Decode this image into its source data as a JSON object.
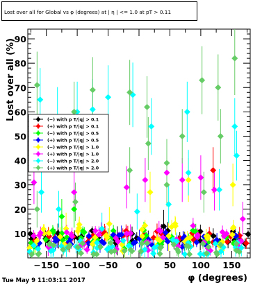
{
  "title": "Lost over all for Global vs φ (degrees) at | η | <= 1.0 at pT > 0.11",
  "footer": "Tue May  9 11:03:11 2017",
  "chart_data": {
    "type": "scatter",
    "xlabel": "φ (degrees)",
    "ylabel": "Lost over all (%)",
    "xlim": [
      -180,
      180
    ],
    "ylim": [
      0,
      94
    ],
    "xticks": [
      -150,
      -100,
      -50,
      0,
      50,
      100,
      150
    ],
    "yticks": [
      10,
      20,
      30,
      40,
      50,
      60,
      70,
      80,
      90
    ],
    "xtick_labels": [
      "−150",
      "−100",
      "−50",
      "0",
      "50",
      "100",
      "150"
    ],
    "ytick_labels": [
      "10",
      "20",
      "30",
      "40",
      "50",
      "60",
      "70",
      "80",
      "90"
    ],
    "grid": false,
    "legend_position": "middle-left",
    "series": [
      {
        "name": "(−) with p T/|q| > 0.1",
        "color": "#000000",
        "points": [
          [
            -170,
            8
          ],
          [
            -150,
            9
          ],
          [
            -125,
            8
          ],
          [
            -100,
            9
          ],
          [
            -70,
            9
          ],
          [
            -40,
            8
          ],
          [
            -10,
            9
          ],
          [
            15,
            8
          ],
          [
            40,
            9
          ],
          [
            70,
            8
          ],
          [
            100,
            9
          ],
          [
            125,
            8
          ],
          [
            150,
            9
          ],
          [
            172,
            8
          ]
        ],
        "upper": [
          [
            -35,
            7
          ],
          [
            40,
            13
          ]
        ]
      },
      {
        "name": "(+) with p T/|q| > 0.1",
        "color": "#ff0000",
        "points": [
          [
            -165,
            8
          ],
          [
            -140,
            9
          ],
          [
            -110,
            8
          ],
          [
            -80,
            9
          ],
          [
            -55,
            8
          ],
          [
            -25,
            9
          ],
          [
            5,
            8
          ],
          [
            30,
            9
          ],
          [
            60,
            8
          ],
          [
            90,
            9
          ],
          [
            115,
            8
          ],
          [
            145,
            9
          ],
          [
            168,
            8
          ]
        ],
        "upper": [
          [
            120,
            36
          ]
        ]
      },
      {
        "name": "(−) with p T/|q| > 0.5",
        "color": "#00ff00",
        "points": [
          [
            -168,
            6
          ],
          [
            -145,
            9
          ],
          [
            -120,
            8
          ],
          [
            -95,
            10
          ],
          [
            -70,
            7
          ],
          [
            -45,
            9
          ],
          [
            -20,
            6
          ],
          [
            10,
            9
          ],
          [
            35,
            7
          ],
          [
            60,
            8
          ],
          [
            85,
            9
          ],
          [
            110,
            7
          ],
          [
            135,
            8
          ],
          [
            160,
            7
          ]
        ],
        "upper": [
          [
            -125,
            17
          ],
          [
            -105,
            20
          ]
        ]
      },
      {
        "name": "(+) with p T/|q| > 0.5",
        "color": "#0000ff",
        "points": [
          [
            -160,
            7
          ],
          [
            -135,
            8
          ],
          [
            -110,
            6
          ],
          [
            -85,
            8
          ],
          [
            -60,
            7
          ],
          [
            -35,
            8
          ],
          [
            -5,
            7
          ],
          [
            20,
            6
          ],
          [
            50,
            8
          ],
          [
            75,
            7
          ],
          [
            100,
            8
          ],
          [
            130,
            7
          ],
          [
            155,
            8
          ]
        ]
      },
      {
        "name": "(−) with p T/|q| > 1.0",
        "color": "#ffff00",
        "points": [
          [
            -172,
            5
          ],
          [
            -150,
            11
          ],
          [
            -125,
            7
          ],
          [
            -100,
            12
          ],
          [
            -75,
            6
          ],
          [
            -48,
            10
          ],
          [
            -22,
            5
          ],
          [
            5,
            11
          ],
          [
            28,
            7
          ],
          [
            55,
            12
          ],
          [
            80,
            6
          ],
          [
            105,
            10
          ],
          [
            130,
            5
          ],
          [
            158,
            11
          ]
        ],
        "upper": [
          [
            -118,
            12
          ],
          [
            -48,
            14
          ],
          [
            18,
            27
          ],
          [
            48,
            9
          ],
          [
            80,
            32
          ],
          [
            152,
            30
          ]
        ]
      },
      {
        "name": "(+) with p T/|q| > 1.0",
        "color": "#ff00ff",
        "points": [
          [
            -165,
            10
          ],
          [
            -140,
            6
          ],
          [
            -115,
            11
          ],
          [
            -90,
            5
          ],
          [
            -65,
            10
          ],
          [
            -40,
            6
          ],
          [
            -15,
            11
          ],
          [
            12,
            5
          ],
          [
            38,
            10
          ],
          [
            62,
            6
          ],
          [
            88,
            11
          ],
          [
            112,
            5
          ],
          [
            138,
            10
          ],
          [
            165,
            6
          ]
        ],
        "upper": [
          [
            -170,
            31
          ],
          [
            -105,
            27
          ],
          [
            -20,
            29
          ],
          [
            10,
            32
          ],
          [
            45,
            35
          ],
          [
            70,
            32
          ],
          [
            100,
            33
          ],
          [
            122,
            28
          ],
          [
            168,
            16
          ]
        ]
      },
      {
        "name": "(−) with p T/|q| > 2.0",
        "color": "#00ffff",
        "points": [
          [
            -170,
            4
          ],
          [
            -145,
            5
          ],
          [
            -120,
            3
          ],
          [
            -95,
            5
          ],
          [
            -70,
            4
          ],
          [
            -45,
            3
          ],
          [
            -20,
            5
          ],
          [
            5,
            4
          ],
          [
            30,
            3
          ],
          [
            55,
            5
          ],
          [
            80,
            4
          ],
          [
            105,
            3
          ],
          [
            130,
            5
          ],
          [
            160,
            4
          ]
        ],
        "upper": [
          [
            -160,
            65
          ],
          [
            -158,
            27
          ],
          [
            -132,
            58
          ],
          [
            -130,
            20
          ],
          [
            -100,
            60
          ],
          [
            -75,
            61
          ],
          [
            -60,
            12
          ],
          [
            -50,
            66
          ],
          [
            -10,
            67
          ],
          [
            -3,
            19
          ],
          [
            20,
            54
          ],
          [
            48,
            22
          ],
          [
            78,
            60
          ],
          [
            80,
            35
          ],
          [
            130,
            28
          ],
          [
            155,
            54
          ],
          [
            158,
            42
          ]
        ]
      },
      {
        "name": "(+) with p T/|q| > 2.0",
        "color": "#66cc66",
        "points": [
          [
            -168,
            3
          ],
          [
            -142,
            4
          ],
          [
            -118,
            3
          ],
          [
            -92,
            4
          ],
          [
            -68,
            3
          ],
          [
            -42,
            4
          ],
          [
            -18,
            3
          ],
          [
            8,
            4
          ],
          [
            32,
            3
          ],
          [
            58,
            4
          ],
          [
            82,
            3
          ],
          [
            108,
            4
          ],
          [
            132,
            3
          ],
          [
            162,
            4
          ]
        ],
        "upper": [
          [
            -165,
            71
          ],
          [
            -165,
            20
          ],
          [
            -105,
            60
          ],
          [
            -103,
            23
          ],
          [
            -75,
            69
          ],
          [
            -15,
            68
          ],
          [
            -15,
            36
          ],
          [
            13,
            62
          ],
          [
            15,
            47
          ],
          [
            45,
            30
          ],
          [
            45,
            39
          ],
          [
            70,
            50
          ],
          [
            102,
            73
          ],
          [
            105,
            27
          ],
          [
            128,
            70
          ],
          [
            132,
            50
          ],
          [
            155,
            82
          ]
        ]
      }
    ]
  }
}
